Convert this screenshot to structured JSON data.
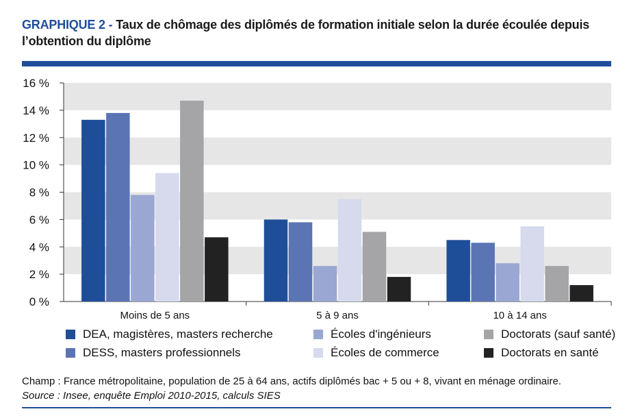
{
  "title": {
    "prefix": "GRAPHIQUE 2 - ",
    "text": "Taux de chômage des diplômés de formation initiale selon la durée écoulée depuis l’obtention du diplôme"
  },
  "notes": {
    "champ": "Champ : France métropolitaine, population de 25 à 64 ans, actifs diplômés bac + 5 ou + 8, vivant en ménage ordinaire.",
    "source": "Source : Insee, enquête Emploi 2010-2015, calculs SIES"
  },
  "colors": {
    "accent": "#1f4e99",
    "grid_band": "#e6e6e6",
    "axis": "#333333"
  },
  "chart_data": {
    "type": "bar",
    "categories": [
      "Moins de 5 ans",
      "5 à 9 ans",
      "10 à 14 ans"
    ],
    "ylim": [
      0,
      16
    ],
    "yticks": [
      {
        "value": 0,
        "label": "0 %"
      },
      {
        "value": 2,
        "label": "2 %"
      },
      {
        "value": 4,
        "label": "4 %"
      },
      {
        "value": 6,
        "label": "6 %"
      },
      {
        "value": 8,
        "label": "8 %"
      },
      {
        "value": 10,
        "label": "10 %"
      },
      {
        "value": 12,
        "label": "12 %"
      },
      {
        "value": 14,
        "label": "14 %"
      },
      {
        "value": 16,
        "label": "16 %"
      }
    ],
    "grid": "alternating bands",
    "legend_position": "bottom",
    "series": [
      {
        "name": "DEA, magistères, masters recherche",
        "color": "#1f4e99",
        "values": [
          13.3,
          6.0,
          4.5
        ]
      },
      {
        "name": "DESS, masters professionnels",
        "color": "#5b74b4",
        "values": [
          13.8,
          5.8,
          4.3
        ]
      },
      {
        "name": "Écoles d'ingénieurs",
        "color": "#9aa7d2",
        "values": [
          7.8,
          2.6,
          2.8
        ]
      },
      {
        "name": "Écoles de commerce",
        "color": "#d6daec",
        "values": [
          9.4,
          7.5,
          5.5
        ]
      },
      {
        "name": "Doctorats (sauf santé)",
        "color": "#a5a5a8",
        "values": [
          14.7,
          5.1,
          2.6
        ]
      },
      {
        "name": "Doctorats en santé",
        "color": "#222222",
        "values": [
          4.7,
          1.8,
          1.2
        ]
      }
    ]
  }
}
